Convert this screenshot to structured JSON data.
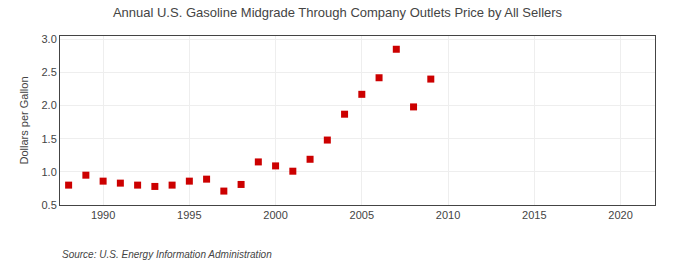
{
  "chart_data": {
    "type": "scatter",
    "title": "Annual U.S. Gasoline Midgrade Through Company Outlets Price by All Sellers",
    "y_label": "Dollars per Gallon",
    "source": "Source: U.S. Energy Information Administration",
    "x": [
      1988,
      1989,
      1990,
      1991,
      1992,
      1993,
      1994,
      1995,
      1996,
      1997,
      1998,
      1999,
      2000,
      2001,
      2002,
      2003,
      2004,
      2005,
      2006,
      2007,
      2008,
      2009
    ],
    "values": [
      0.8,
      0.95,
      0.86,
      0.83,
      0.8,
      0.78,
      0.8,
      0.86,
      0.89,
      0.71,
      0.81,
      1.15,
      1.09,
      1.01,
      1.19,
      1.48,
      1.87,
      2.17,
      2.42,
      2.85,
      1.98,
      2.4
    ],
    "color": "#cc0000",
    "marker": "square",
    "xlim": [
      1987.5,
      2022
    ],
    "ylim": [
      0.5,
      3.05
    ],
    "xticks": [
      1990,
      1995,
      2000,
      2005,
      2010,
      2015,
      2020
    ],
    "yticks": [
      0.5,
      {
        "value": 1.0,
        "label": "1.0"
      },
      1.5,
      {
        "value": 2.0,
        "label": "2.0"
      },
      2.5,
      {
        "value": 3.0,
        "label": "3.0"
      }
    ],
    "grid": true
  }
}
